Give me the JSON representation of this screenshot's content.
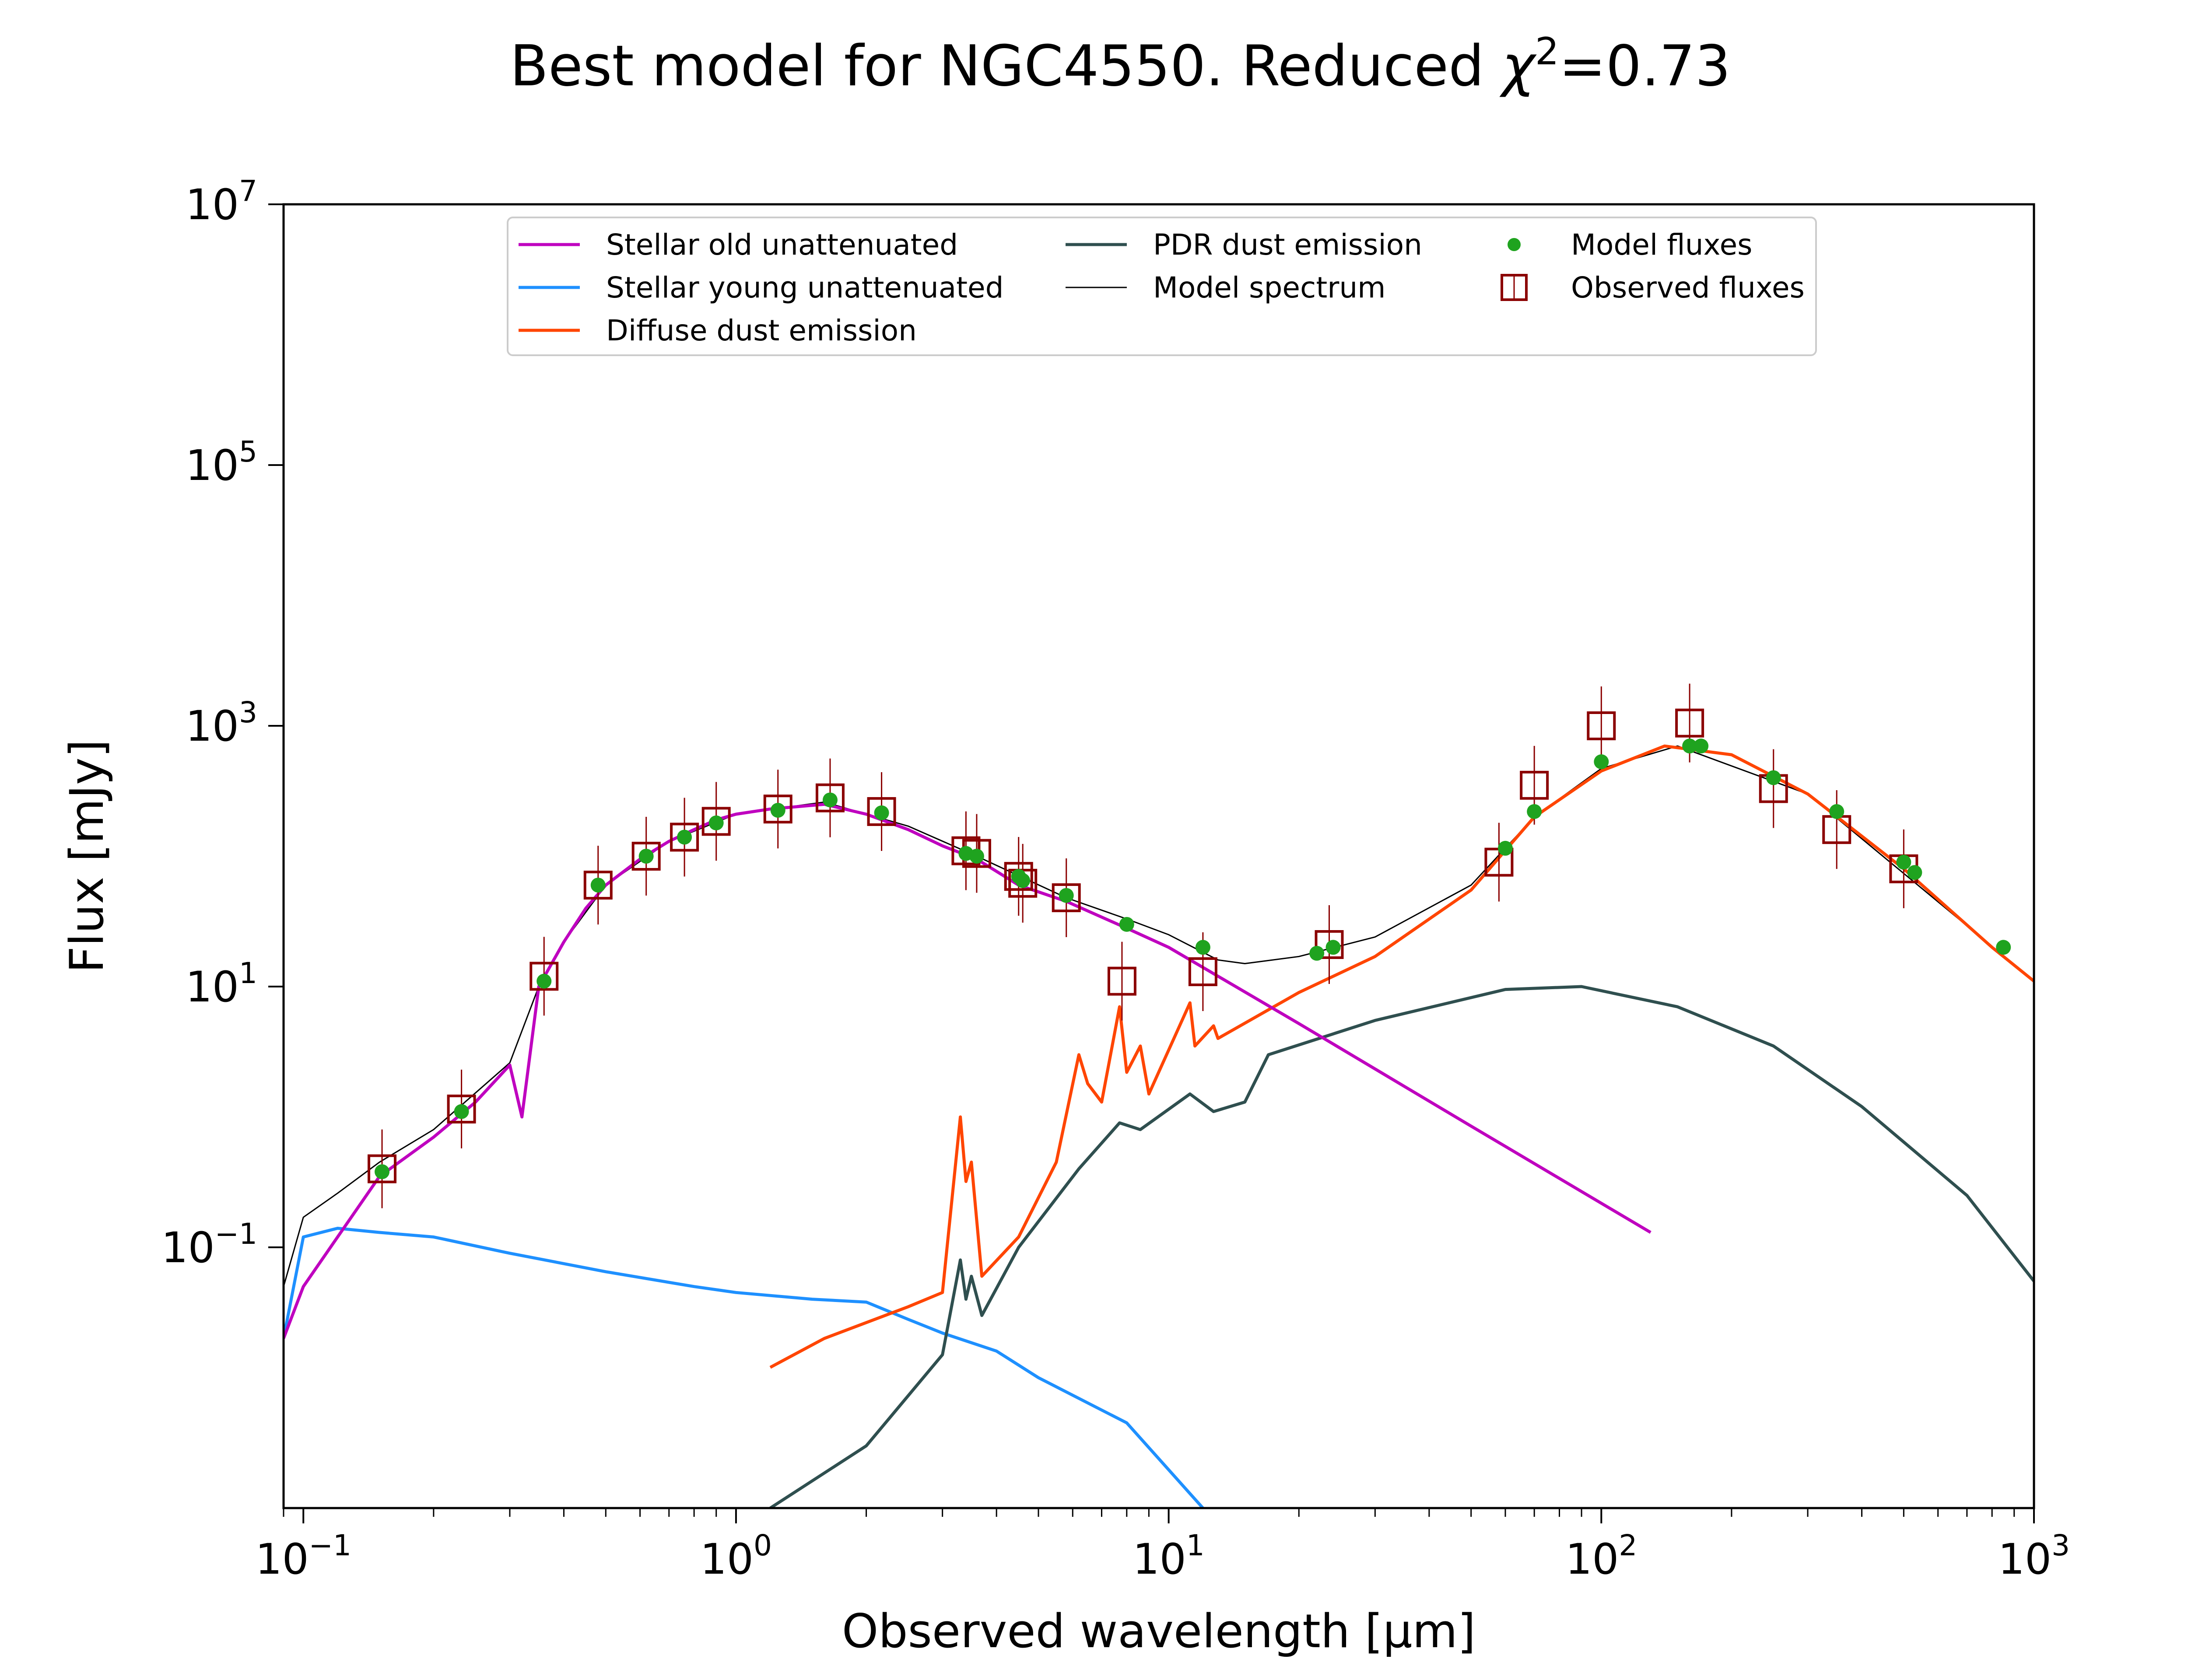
{
  "title": {
    "prefix": "Best model for NGC4550. Reduced ",
    "chi": "χ",
    "sup": "2",
    "suffix": "=0.73"
  },
  "chart_data": {
    "type": "line",
    "title": "Best model for NGC4550. Reduced χ2=0.73",
    "xlabel": "Observed wavelength [μm]",
    "ylabel": "Flux [mJy]",
    "x_scale": "log",
    "y_scale": "log",
    "xlim": [
      0.09,
      1000
    ],
    "ylim": [
      0.001,
      10000000
    ],
    "x_ticks": [
      {
        "base": "10",
        "exp": "−1",
        "value": 0.1
      },
      {
        "base": "10",
        "exp": "0",
        "value": 1
      },
      {
        "base": "10",
        "exp": "1",
        "value": 10
      },
      {
        "base": "10",
        "exp": "2",
        "value": 100
      },
      {
        "base": "10",
        "exp": "3",
        "value": 1000
      }
    ],
    "y_ticks": [
      {
        "base": "10",
        "exp": "−1",
        "value": 0.1
      },
      {
        "base": "10",
        "exp": "1",
        "value": 10
      },
      {
        "base": "10",
        "exp": "3",
        "value": 1000
      },
      {
        "base": "10",
        "exp": "5",
        "value": 100000
      },
      {
        "base": "10",
        "exp": "7",
        "value": 10000000
      }
    ],
    "legend_position": "top-center",
    "legend": [
      {
        "label": "Stellar old unattenuated",
        "kind": "line",
        "color": "#bf00bf"
      },
      {
        "label": "Stellar young unattenuated",
        "kind": "line",
        "color": "#1e90ff"
      },
      {
        "label": "Diffuse dust emission",
        "kind": "line",
        "color": "#ff4500"
      },
      {
        "label": "PDR dust emission",
        "kind": "line",
        "color": "#2f4f4f"
      },
      {
        "label": "Model spectrum",
        "kind": "thin-line",
        "color": "#000000"
      },
      {
        "label": "Model fluxes",
        "kind": "dot",
        "color": "#1fa31f"
      },
      {
        "label": "Observed fluxes",
        "kind": "square",
        "color": "#8b0000"
      }
    ],
    "series": [
      {
        "name": "Stellar old unattenuated",
        "color": "#bf00bf",
        "x": [
          0.09,
          0.1,
          0.12,
          0.15,
          0.2,
          0.25,
          0.3,
          0.32,
          0.35,
          0.4,
          0.45,
          0.5,
          0.6,
          0.7,
          0.8,
          0.9,
          1.0,
          1.2,
          1.6,
          2.0,
          2.5,
          3.0,
          3.6,
          4.5,
          5.8,
          8.0,
          10,
          20,
          50,
          130
        ],
        "y": [
          0.02,
          0.05,
          0.12,
          0.35,
          0.7,
          1.3,
          2.5,
          1.0,
          10,
          22,
          40,
          60,
          95,
          130,
          160,
          190,
          210,
          230,
          250,
          210,
          160,
          120,
          95,
          60,
          45,
          28,
          20,
          5.2,
          0.85,
          0.13
        ]
      },
      {
        "name": "Stellar young unattenuated",
        "color": "#1e90ff",
        "x": [
          0.09,
          0.1,
          0.12,
          0.15,
          0.2,
          0.3,
          0.5,
          0.8,
          1.0,
          1.5,
          2.0,
          2.5,
          3.0,
          4.0,
          5.0,
          8.0,
          12
        ],
        "y": [
          0.02,
          0.12,
          0.14,
          0.13,
          0.12,
          0.09,
          0.065,
          0.05,
          0.045,
          0.04,
          0.038,
          0.028,
          0.022,
          0.016,
          0.01,
          0.0045,
          0.001
        ]
      },
      {
        "name": "Diffuse dust emission",
        "color": "#ff4500",
        "x": [
          1.2,
          1.6,
          2.5,
          3.0,
          3.3,
          3.4,
          3.5,
          3.7,
          4.5,
          5.5,
          6.2,
          6.5,
          7.0,
          7.7,
          8.0,
          8.6,
          9.0,
          11.2,
          11.5,
          12.7,
          13,
          20,
          30,
          50,
          70,
          100,
          140,
          200,
          300,
          500,
          800,
          1000
        ],
        "y": [
          0.012,
          0.02,
          0.035,
          0.045,
          1.0,
          0.32,
          0.45,
          0.06,
          0.12,
          0.45,
          3.0,
          1.8,
          1.3,
          7.0,
          2.2,
          3.5,
          1.5,
          7.5,
          3.5,
          5.0,
          4.0,
          9.0,
          17,
          55,
          200,
          450,
          700,
          600,
          300,
          80,
          20,
          11
        ]
      },
      {
        "name": "PDR dust emission",
        "color": "#2f4f4f",
        "x": [
          1.2,
          2.0,
          3.0,
          3.3,
          3.4,
          3.5,
          3.7,
          4.5,
          6.2,
          7.7,
          8.6,
          11.2,
          12.7,
          15,
          17,
          30,
          60,
          90,
          150,
          250,
          400,
          700,
          1000
        ],
        "y": [
          0.001,
          0.003,
          0.015,
          0.08,
          0.04,
          0.06,
          0.03,
          0.1,
          0.4,
          0.9,
          0.8,
          1.5,
          1.1,
          1.3,
          3.0,
          5.5,
          9.5,
          10,
          7.0,
          3.5,
          1.2,
          0.25,
          0.055
        ]
      },
      {
        "name": "Model spectrum",
        "color": "#000000",
        "x": [
          0.09,
          0.1,
          0.12,
          0.15,
          0.2,
          0.3,
          0.35,
          0.4,
          0.5,
          0.7,
          1.0,
          1.6,
          2.5,
          3.6,
          5.8,
          8.0,
          10,
          13,
          15,
          20,
          30,
          50,
          70,
          100,
          150,
          300,
          1000
        ],
        "y": [
          0.05,
          0.17,
          0.26,
          0.45,
          0.8,
          2.6,
          10,
          22,
          60,
          130,
          210,
          260,
          170,
          100,
          48,
          33,
          25,
          16,
          15,
          17,
          24,
          60,
          200,
          470,
          700,
          300,
          11
        ]
      },
      {
        "name": "Model fluxes",
        "color": "#1fa31f",
        "x": [
          0.152,
          0.232,
          0.36,
          0.48,
          0.62,
          0.76,
          0.9,
          1.25,
          1.65,
          2.17,
          3.4,
          3.6,
          4.5,
          4.6,
          5.8,
          8.0,
          12,
          22,
          24,
          60,
          70,
          100,
          160,
          170,
          250,
          350,
          500,
          530,
          850
        ],
        "y": [
          0.38,
          1.1,
          11,
          60,
          100,
          140,
          180,
          225,
          270,
          215,
          105,
          100,
          70,
          65,
          50,
          30,
          20,
          18,
          20,
          115,
          220,
          530,
          700,
          700,
          400,
          220,
          90,
          75,
          20
        ]
      },
      {
        "name": "Observed fluxes",
        "color": "#8b0000",
        "x": [
          0.152,
          0.232,
          0.36,
          0.48,
          0.62,
          0.76,
          0.9,
          1.25,
          1.65,
          2.17,
          3.4,
          3.6,
          4.5,
          4.6,
          5.8,
          7.8,
          12,
          23.5,
          58,
          70,
          100,
          160,
          250,
          350,
          500
        ],
        "y": [
          0.4,
          1.15,
          12,
          60,
          100,
          140,
          185,
          230,
          280,
          220,
          110,
          105,
          70,
          62,
          48,
          11,
          13,
          21,
          90,
          350,
          1000,
          1050,
          330,
          160,
          80
        ]
      }
    ]
  }
}
